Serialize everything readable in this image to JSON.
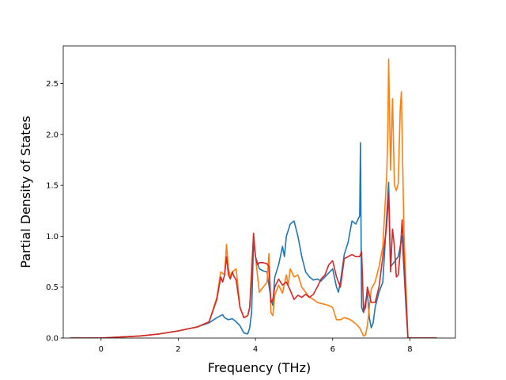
{
  "chart_data": {
    "type": "line",
    "title": "",
    "xlabel": "Frequency (THz)",
    "ylabel": "Partial Density of States",
    "xlim": [
      -0.98,
      9.18
    ],
    "ylim": [
      0.0,
      2.87
    ],
    "xticks": [
      0,
      2,
      4,
      6,
      8
    ],
    "yticks": [
      0.0,
      0.5,
      1.0,
      1.5,
      2.0,
      2.5
    ],
    "xtick_labels": [
      "0",
      "2",
      "4",
      "6",
      "8"
    ],
    "ytick_labels": [
      "0.0",
      "0.5",
      "1.0",
      "1.5",
      "2.0",
      "2.5"
    ],
    "grid": false,
    "legend": "none",
    "series": [
      {
        "color": "#1f77b4",
        "x": [
          -0.8,
          0,
          0.5,
          1,
          1.5,
          2,
          2.5,
          2.8,
          3.0,
          3.1,
          3.15,
          3.2,
          3.3,
          3.4,
          3.5,
          3.6,
          3.7,
          3.8,
          3.85,
          3.9,
          3.95,
          4.0,
          4.1,
          4.2,
          4.3,
          4.4,
          4.45,
          4.5,
          4.6,
          4.7,
          4.75,
          4.8,
          4.9,
          5.0,
          5.1,
          5.2,
          5.3,
          5.4,
          5.5,
          5.6,
          5.7,
          5.8,
          5.9,
          6.0,
          6.1,
          6.15,
          6.2,
          6.3,
          6.4,
          6.5,
          6.6,
          6.7,
          6.72,
          6.75,
          6.8,
          6.9,
          6.95,
          7.0,
          7.05,
          7.1,
          7.2,
          7.3,
          7.4,
          7.45,
          7.5,
          7.6,
          7.7,
          7.75,
          7.8,
          7.9,
          7.95,
          8.7
        ],
        "y": [
          0.0,
          0.0,
          0.01,
          0.02,
          0.04,
          0.07,
          0.11,
          0.15,
          0.2,
          0.22,
          0.23,
          0.2,
          0.18,
          0.19,
          0.16,
          0.12,
          0.05,
          0.04,
          0.1,
          0.25,
          0.95,
          0.8,
          0.68,
          0.66,
          0.65,
          0.38,
          0.32,
          0.6,
          0.72,
          0.9,
          0.8,
          1.0,
          1.12,
          1.15,
          1.0,
          0.8,
          0.65,
          0.6,
          0.57,
          0.58,
          0.56,
          0.6,
          0.64,
          0.68,
          0.5,
          0.45,
          0.55,
          0.82,
          0.94,
          1.15,
          1.12,
          1.2,
          1.92,
          0.3,
          0.25,
          0.45,
          0.2,
          0.1,
          0.15,
          0.3,
          0.45,
          0.55,
          1.2,
          1.53,
          0.7,
          0.75,
          0.8,
          0.9,
          1.0,
          0.3,
          0.0,
          0.0
        ]
      },
      {
        "color": "#ff7f0e",
        "x": [
          -0.8,
          0,
          0.5,
          1,
          1.5,
          2,
          2.5,
          2.8,
          3.0,
          3.1,
          3.2,
          3.25,
          3.3,
          3.35,
          3.4,
          3.5,
          3.6,
          3.7,
          3.8,
          3.85,
          3.9,
          3.95,
          4.0,
          4.1,
          4.2,
          4.3,
          4.35,
          4.4,
          4.45,
          4.5,
          4.6,
          4.7,
          4.8,
          4.85,
          4.9,
          5.0,
          5.1,
          5.2,
          5.3,
          5.4,
          5.5,
          5.6,
          5.7,
          5.8,
          5.9,
          6.0,
          6.1,
          6.2,
          6.3,
          6.4,
          6.5,
          6.6,
          6.7,
          6.8,
          6.85,
          6.9,
          7.0,
          7.1,
          7.2,
          7.3,
          7.4,
          7.43,
          7.45,
          7.5,
          7.55,
          7.6,
          7.65,
          7.7,
          7.75,
          7.78,
          7.8,
          7.85,
          7.95,
          8.7
        ],
        "y": [
          0.0,
          0.0,
          0.01,
          0.02,
          0.04,
          0.07,
          0.11,
          0.16,
          0.4,
          0.65,
          0.62,
          0.92,
          0.68,
          0.6,
          0.65,
          0.68,
          0.3,
          0.2,
          0.22,
          0.3,
          0.7,
          1.0,
          0.8,
          0.45,
          0.5,
          0.55,
          0.83,
          0.25,
          0.22,
          0.42,
          0.52,
          0.44,
          0.62,
          0.52,
          0.68,
          0.6,
          0.62,
          0.5,
          0.45,
          0.4,
          0.38,
          0.35,
          0.34,
          0.33,
          0.32,
          0.3,
          0.18,
          0.18,
          0.2,
          0.19,
          0.17,
          0.14,
          0.1,
          0.02,
          0.03,
          0.12,
          0.48,
          0.55,
          0.7,
          0.9,
          1.6,
          2.0,
          2.74,
          1.65,
          2.35,
          1.5,
          1.45,
          1.52,
          2.25,
          2.42,
          2.0,
          1.0,
          0.0,
          0.0
        ]
      },
      {
        "color": "#d62728",
        "x": [
          -0.8,
          0,
          0.5,
          1,
          1.5,
          2,
          2.5,
          2.8,
          3.0,
          3.1,
          3.15,
          3.2,
          3.25,
          3.3,
          3.35,
          3.4,
          3.45,
          3.5,
          3.6,
          3.7,
          3.8,
          3.85,
          3.9,
          3.95,
          4.0,
          4.05,
          4.1,
          4.2,
          4.3,
          4.35,
          4.4,
          4.45,
          4.5,
          4.6,
          4.7,
          4.8,
          4.9,
          5.0,
          5.1,
          5.2,
          5.3,
          5.4,
          5.5,
          5.6,
          5.7,
          5.8,
          5.9,
          6.0,
          6.1,
          6.2,
          6.3,
          6.4,
          6.5,
          6.6,
          6.7,
          6.75,
          6.8,
          6.85,
          6.9,
          7.0,
          7.1,
          7.2,
          7.3,
          7.4,
          7.45,
          7.5,
          7.55,
          7.6,
          7.65,
          7.7,
          7.75,
          7.8,
          7.85,
          7.95,
          8.7
        ],
        "y": [
          0.0,
          0.0,
          0.01,
          0.02,
          0.04,
          0.07,
          0.11,
          0.16,
          0.38,
          0.6,
          0.55,
          0.62,
          0.8,
          0.62,
          0.58,
          0.65,
          0.6,
          0.57,
          0.3,
          0.2,
          0.22,
          0.3,
          0.6,
          1.03,
          0.8,
          0.72,
          0.74,
          0.74,
          0.73,
          0.7,
          0.35,
          0.38,
          0.5,
          0.58,
          0.52,
          0.55,
          0.47,
          0.38,
          0.42,
          0.4,
          0.43,
          0.4,
          0.43,
          0.5,
          0.58,
          0.62,
          0.72,
          0.76,
          0.6,
          0.5,
          0.78,
          0.8,
          0.82,
          0.8,
          0.8,
          0.85,
          0.26,
          0.3,
          0.5,
          0.35,
          0.35,
          0.5,
          0.8,
          1.1,
          1.43,
          0.65,
          1.07,
          0.9,
          0.6,
          0.62,
          0.85,
          1.16,
          0.75,
          0.0,
          0.0
        ]
      }
    ]
  }
}
